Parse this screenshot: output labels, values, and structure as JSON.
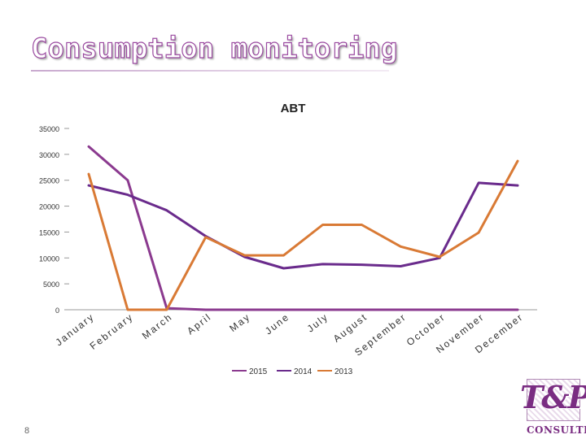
{
  "slide": {
    "title": "Consumption monitoring",
    "page_number": "8"
  },
  "logo": {
    "mark": "T&P",
    "text": "CONSULTING"
  },
  "colors": {
    "series_2015": "#8b3a8f",
    "series_2014": "#6a2b8c",
    "series_2013": "#d97a35",
    "title_stroke": "#9a4aa0"
  },
  "chart_data": {
    "type": "line",
    "title": "ABT",
    "categories": [
      "January",
      "February",
      "March",
      "April",
      "May",
      "June",
      "July",
      "August",
      "September",
      "October",
      "November",
      "December"
    ],
    "ylim": [
      0,
      35000
    ],
    "yticks": [
      "35000",
      "30000",
      "25000",
      "20000",
      "15000",
      "10000",
      "5000",
      "0"
    ],
    "ytick_values": [
      35000,
      30000,
      25000,
      20000,
      15000,
      10000,
      5000,
      0
    ],
    "legend_position": "bottom",
    "series": [
      {
        "name": "2015",
        "values": [
          31500,
          25000,
          300,
          0,
          0,
          0,
          0,
          0,
          0,
          0,
          0,
          0
        ]
      },
      {
        "name": "2014",
        "values": [
          24000,
          22200,
          19200,
          14200,
          10200,
          8000,
          8800,
          8700,
          8400,
          10000,
          24500,
          24000
        ]
      },
      {
        "name": "2013",
        "values": [
          26200,
          0,
          0,
          14000,
          10500,
          10500,
          16400,
          16400,
          12200,
          10200,
          14900,
          28700
        ]
      }
    ]
  }
}
